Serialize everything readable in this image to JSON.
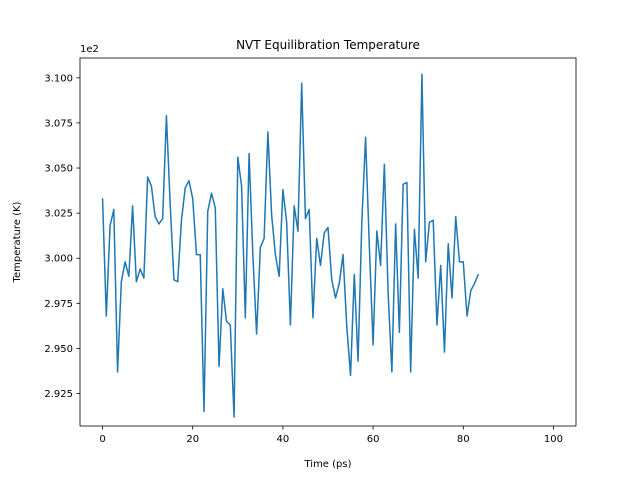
{
  "chart_data": {
    "type": "line",
    "title": "NVT Equilibration Temperature",
    "xlabel": "Time (ps)",
    "ylabel": "Temperature (K)",
    "offset_label": "1e2",
    "xlim": [
      -5,
      105
    ],
    "ylim": [
      2.907,
      3.111
    ],
    "grid": false,
    "legend": "none",
    "x_ticks": [
      0,
      20,
      40,
      60,
      80,
      100
    ],
    "x_tick_labels": [
      "0",
      "20",
      "40",
      "60",
      "80",
      "100"
    ],
    "y_ticks": [
      2.925,
      2.95,
      2.975,
      3.0,
      3.025,
      3.05,
      3.075,
      3.1
    ],
    "y_tick_labels": [
      "2.925",
      "2.950",
      "2.975",
      "3.000",
      "3.025",
      "3.050",
      "3.075",
      "3.100"
    ],
    "series": [
      {
        "color": "#1f77b4",
        "x_start": 0,
        "x_step": 0.8333,
        "values": [
          3.033,
          2.968,
          3.018,
          3.027,
          2.937,
          2.987,
          2.998,
          2.99,
          3.029,
          2.987,
          2.994,
          2.989,
          3.045,
          3.04,
          3.023,
          3.019,
          3.022,
          3.079,
          3.03,
          2.988,
          2.987,
          3.021,
          3.039,
          3.043,
          3.033,
          3.002,
          3.002,
          2.915,
          3.026,
          3.036,
          3.028,
          2.94,
          2.983,
          2.965,
          2.963,
          2.912,
          3.056,
          3.04,
          2.967,
          3.058,
          3.002,
          2.958,
          3.006,
          3.011,
          3.07,
          3.024,
          3.002,
          2.99,
          3.038,
          3.02,
          2.963,
          3.029,
          3.015,
          3.097,
          3.022,
          3.027,
          2.967,
          3.011,
          2.996,
          3.014,
          3.017,
          2.988,
          2.978,
          2.986,
          3.002,
          2.962,
          2.935,
          2.991,
          2.943,
          3.02,
          3.067,
          3.007,
          2.952,
          3.015,
          2.996,
          3.052,
          2.981,
          2.937,
          3.019,
          2.959,
          3.041,
          3.042,
          2.937,
          3.016,
          2.989,
          3.102,
          2.998,
          3.02,
          3.021,
          2.963,
          2.996,
          2.948,
          3.008,
          2.978,
          3.023,
          2.998,
          2.998,
          2.968,
          2.982,
          2.986,
          2.991
        ]
      }
    ]
  }
}
